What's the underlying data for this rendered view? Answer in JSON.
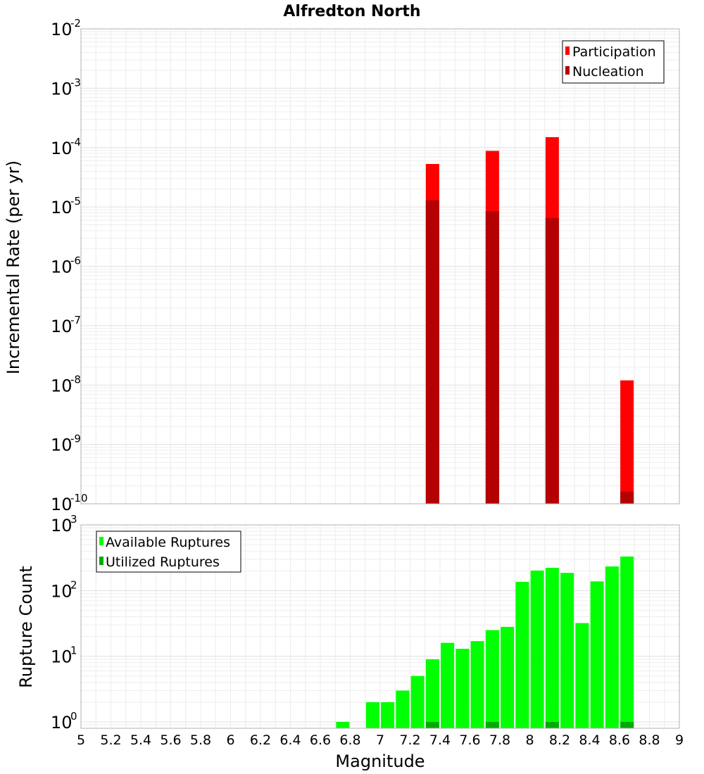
{
  "chart_data": [
    {
      "type": "bar",
      "title": "Alfredton North",
      "xlabel": "",
      "ylabel": "Incremental Rate (per yr)",
      "yscale": "log",
      "xlim": [
        5,
        9
      ],
      "ylim": [
        1e-10,
        0.01
      ],
      "y_ticks": [
        {
          "base": "10",
          "exp": "-10"
        },
        {
          "base": "10",
          "exp": "-9"
        },
        {
          "base": "10",
          "exp": "-8"
        },
        {
          "base": "10",
          "exp": "-7"
        },
        {
          "base": "10",
          "exp": "-6"
        },
        {
          "base": "10",
          "exp": "-5"
        },
        {
          "base": "10",
          "exp": "-4"
        },
        {
          "base": "10",
          "exp": "-3"
        },
        {
          "base": "10",
          "exp": "-2"
        }
      ],
      "legend_position": "top-right",
      "series": [
        {
          "name": "Participation",
          "color": "#ff0000",
          "x": [
            7.35,
            7.75,
            8.15,
            8.65
          ],
          "values": [
            5.3e-05,
            8.8e-05,
            0.00015,
            1.2e-08
          ]
        },
        {
          "name": "Nucleation",
          "color": "#b40000",
          "x": [
            7.35,
            7.75,
            8.15,
            8.65
          ],
          "values": [
            1.3e-05,
            8.5e-06,
            6.5e-06,
            1.6e-10
          ]
        }
      ]
    },
    {
      "type": "bar",
      "title": "",
      "xlabel": "Magnitude",
      "ylabel": "Rupture Count",
      "yscale": "log",
      "xlim": [
        5,
        9
      ],
      "ylim": [
        0.8,
        1000
      ],
      "x_ticks": [
        "5",
        "5.2",
        "5.4",
        "5.6",
        "5.8",
        "6",
        "6.2",
        "6.4",
        "6.6",
        "6.8",
        "7",
        "7.2",
        "7.4",
        "7.6",
        "7.8",
        "8",
        "8.2",
        "8.4",
        "8.6",
        "8.8",
        "9"
      ],
      "y_ticks": [
        {
          "base": "10",
          "exp": "0"
        },
        {
          "base": "10",
          "exp": "1"
        },
        {
          "base": "10",
          "exp": "2"
        },
        {
          "base": "10",
          "exp": "3"
        }
      ],
      "legend_position": "top-left",
      "series": [
        {
          "name": "Available Ruptures",
          "color": "#00ff00",
          "x": [
            6.75,
            6.95,
            7.05,
            7.15,
            7.25,
            7.35,
            7.45,
            7.55,
            7.65,
            7.75,
            7.85,
            7.95,
            8.05,
            8.15,
            8.25,
            8.35,
            8.45,
            8.55,
            8.65
          ],
          "values": [
            1,
            2,
            2,
            3,
            5,
            9,
            16,
            13,
            17,
            25,
            28,
            136,
            202,
            222,
            186,
            32,
            138,
            233,
            330
          ]
        },
        {
          "name": "Utilized Ruptures",
          "color": "#00aa00",
          "x": [
            7.35,
            7.75,
            8.15,
            8.65
          ],
          "values": [
            1,
            1,
            1,
            1
          ]
        }
      ]
    }
  ]
}
